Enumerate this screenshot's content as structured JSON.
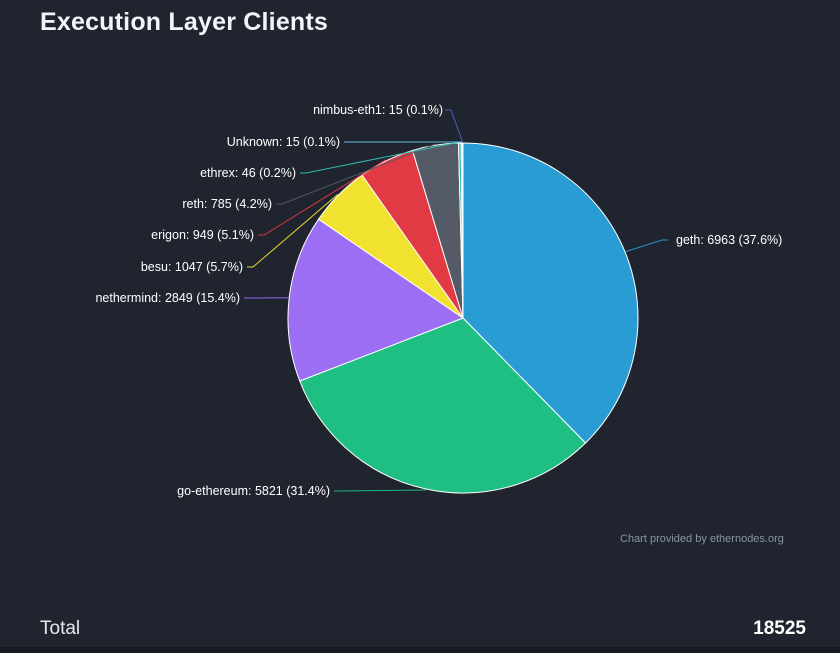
{
  "header": {
    "title": "Execution Layer Clients"
  },
  "chart_data": {
    "type": "pie",
    "title": "Execution Layer Clients",
    "legend": "none",
    "start_angle_deg": 0,
    "direction": "clockwise",
    "total": 18525,
    "credit": "Chart provided by ethernodes.org",
    "background": "#20242e",
    "slices": [
      {
        "name": "geth",
        "value": 6963,
        "pct": 37.6,
        "label": "geth: 6963 (37.6%)",
        "color": "#2a9cd4"
      },
      {
        "name": "go-ethereum",
        "value": 5821,
        "pct": 31.4,
        "label": "go-ethereum: 5821 (31.4%)",
        "color": "#1fbf83"
      },
      {
        "name": "nethermind",
        "value": 2849,
        "pct": 15.4,
        "label": "nethermind: 2849 (15.4%)",
        "color": "#9b6ef3"
      },
      {
        "name": "besu",
        "value": 1047,
        "pct": 5.7,
        "label": "besu: 1047 (5.7%)",
        "color": "#f2e230"
      },
      {
        "name": "erigon",
        "value": 949,
        "pct": 5.1,
        "label": "erigon: 949 (5.1%)",
        "color": "#e23a45"
      },
      {
        "name": "reth",
        "value": 785,
        "pct": 4.2,
        "label": "reth: 785 (4.2%)",
        "color": "#555b66"
      },
      {
        "name": "ethrex",
        "value": 46,
        "pct": 0.2,
        "label": "ethrex: 46 (0.2%)",
        "color": "#2ec4b6"
      },
      {
        "name": "Unknown",
        "value": 15,
        "pct": 0.1,
        "label": "Unknown: 15 (0.1%)",
        "color": "#62c9e8"
      },
      {
        "name": "nimbus-eth1",
        "value": 15,
        "pct": 0.1,
        "label": "nimbus-eth1: 15 (0.1%)",
        "color": "#4664c4"
      }
    ]
  },
  "footer": {
    "label": "Total",
    "value": "18525"
  }
}
